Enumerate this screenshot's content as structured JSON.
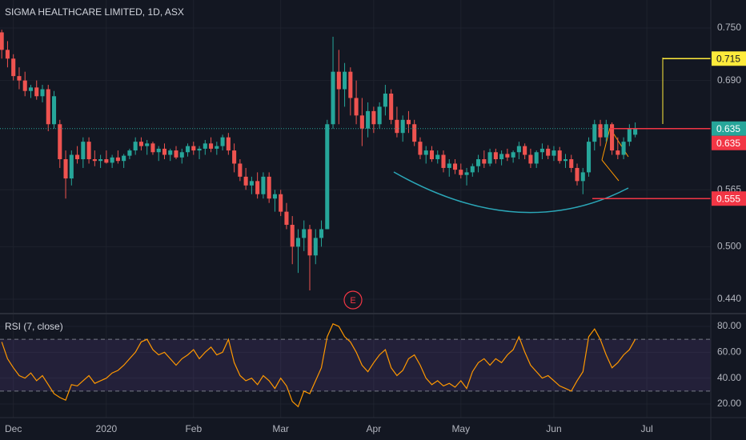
{
  "chart_data": [
    {
      "type": "candlestick",
      "title": "SIGMA HEALTHCARE LIMITED, 1D, ASX",
      "up_color": "#26a69a",
      "down_color": "#ef5350",
      "grid": true,
      "xlim": [
        -0.3,
        122
      ],
      "xticks": [
        {
          "value": 2,
          "label": "Dec"
        },
        {
          "value": 18,
          "label": "2020"
        },
        {
          "value": 33,
          "label": "Feb"
        },
        {
          "value": 48,
          "label": "Mar"
        },
        {
          "value": 64,
          "label": "Apr"
        },
        {
          "value": 79,
          "label": "May"
        },
        {
          "value": 95,
          "label": "Jun"
        },
        {
          "value": 111,
          "label": "Jul"
        }
      ],
      "ylim": [
        0.4235,
        0.782
      ],
      "yticks": [
        {
          "value": 0.75,
          "label": "0.750"
        },
        {
          "value": 0.69,
          "label": "0.690"
        },
        {
          "value": 0.565,
          "label": "0.565"
        },
        {
          "value": 0.5,
          "label": "0.500"
        },
        {
          "value": 0.44,
          "label": "0.440"
        }
      ],
      "price_labels": [
        {
          "value": 0.715,
          "color": "#ffeb3b"
        },
        {
          "value": 0.635,
          "color": "#26a69a"
        },
        {
          "value": 0.635,
          "color": "#f23645"
        },
        {
          "value": 0.555,
          "color": "#f23645"
        }
      ],
      "event_marker": "E",
      "open": [
        0.745,
        0.725,
        0.715,
        0.695,
        0.69,
        0.678,
        0.682,
        0.672,
        0.68,
        0.64,
        0.64,
        0.6,
        0.578,
        0.605,
        0.6,
        0.62,
        0.6,
        0.598,
        0.6,
        0.596,
        0.602,
        0.598,
        0.604,
        0.61,
        0.62,
        0.615,
        0.618,
        0.608,
        0.612,
        0.605,
        0.61,
        0.602,
        0.608,
        0.615,
        0.61,
        0.612,
        0.618,
        0.612,
        0.615,
        0.625,
        0.61,
        0.595,
        0.58,
        0.57,
        0.575,
        0.56,
        0.58,
        0.555,
        0.56,
        0.54,
        0.525,
        0.5,
        0.51,
        0.52,
        0.49,
        0.51,
        0.52,
        0.64,
        0.7,
        0.68,
        0.7,
        0.67,
        0.65,
        0.635,
        0.655,
        0.64,
        0.66,
        0.675,
        0.645,
        0.63,
        0.645,
        0.64,
        0.62,
        0.605,
        0.61,
        0.6,
        0.605,
        0.59,
        0.595,
        0.588,
        0.582,
        0.585,
        0.592,
        0.6,
        0.595,
        0.608,
        0.6,
        0.606,
        0.602,
        0.608,
        0.615,
        0.605,
        0.595,
        0.608,
        0.612,
        0.604,
        0.61,
        0.598,
        0.6,
        0.59,
        0.575,
        0.585,
        0.62,
        0.64,
        0.625,
        0.64,
        0.61,
        0.605,
        0.62,
        0.628
      ],
      "high": [
        0.748,
        0.735,
        0.72,
        0.705,
        0.7,
        0.685,
        0.69,
        0.685,
        0.685,
        0.678,
        0.645,
        0.61,
        0.61,
        0.615,
        0.625,
        0.625,
        0.61,
        0.605,
        0.61,
        0.605,
        0.61,
        0.606,
        0.612,
        0.625,
        0.625,
        0.622,
        0.62,
        0.615,
        0.618,
        0.612,
        0.615,
        0.612,
        0.618,
        0.62,
        0.615,
        0.622,
        0.625,
        0.62,
        0.628,
        0.63,
        0.618,
        0.6,
        0.59,
        0.58,
        0.585,
        0.585,
        0.585,
        0.565,
        0.565,
        0.55,
        0.535,
        0.52,
        0.53,
        0.525,
        0.52,
        0.53,
        0.645,
        0.74,
        0.725,
        0.71,
        0.705,
        0.69,
        0.67,
        0.665,
        0.66,
        0.665,
        0.685,
        0.68,
        0.66,
        0.65,
        0.655,
        0.645,
        0.625,
        0.615,
        0.615,
        0.61,
        0.61,
        0.6,
        0.6,
        0.595,
        0.59,
        0.595,
        0.605,
        0.61,
        0.612,
        0.612,
        0.61,
        0.612,
        0.61,
        0.62,
        0.618,
        0.612,
        0.61,
        0.618,
        0.616,
        0.615,
        0.614,
        0.606,
        0.605,
        0.595,
        0.59,
        0.625,
        0.645,
        0.645,
        0.645,
        0.642,
        0.625,
        0.625,
        0.64,
        0.642
      ],
      "low": [
        0.715,
        0.705,
        0.69,
        0.68,
        0.672,
        0.67,
        0.668,
        0.665,
        0.632,
        0.635,
        0.59,
        0.555,
        0.57,
        0.595,
        0.59,
        0.595,
        0.592,
        0.59,
        0.595,
        0.59,
        0.595,
        0.59,
        0.6,
        0.605,
        0.61,
        0.605,
        0.605,
        0.598,
        0.6,
        0.598,
        0.6,
        0.595,
        0.603,
        0.605,
        0.6,
        0.605,
        0.608,
        0.605,
        0.61,
        0.605,
        0.585,
        0.575,
        0.565,
        0.56,
        0.555,
        0.555,
        0.55,
        0.54,
        0.535,
        0.52,
        0.48,
        0.47,
        0.495,
        0.45,
        0.48,
        0.5,
        0.52,
        0.635,
        0.64,
        0.66,
        0.65,
        0.64,
        0.615,
        0.625,
        0.63,
        0.635,
        0.65,
        0.64,
        0.625,
        0.62,
        0.63,
        0.615,
        0.6,
        0.595,
        0.597,
        0.595,
        0.585,
        0.58,
        0.583,
        0.578,
        0.57,
        0.58,
        0.585,
        0.59,
        0.592,
        0.595,
        0.593,
        0.598,
        0.596,
        0.6,
        0.6,
        0.59,
        0.59,
        0.6,
        0.6,
        0.598,
        0.595,
        0.59,
        0.585,
        0.57,
        0.56,
        0.58,
        0.61,
        0.615,
        0.62,
        0.605,
        0.6,
        0.6,
        0.615,
        0.625
      ],
      "close": [
        0.725,
        0.715,
        0.695,
        0.69,
        0.678,
        0.682,
        0.672,
        0.68,
        0.64,
        0.672,
        0.6,
        0.578,
        0.605,
        0.6,
        0.62,
        0.6,
        0.598,
        0.6,
        0.596,
        0.602,
        0.598,
        0.604,
        0.61,
        0.62,
        0.615,
        0.618,
        0.608,
        0.612,
        0.605,
        0.61,
        0.602,
        0.608,
        0.615,
        0.61,
        0.612,
        0.618,
        0.612,
        0.615,
        0.625,
        0.61,
        0.595,
        0.58,
        0.57,
        0.575,
        0.56,
        0.58,
        0.555,
        0.56,
        0.54,
        0.525,
        0.5,
        0.51,
        0.52,
        0.49,
        0.51,
        0.52,
        0.64,
        0.7,
        0.68,
        0.7,
        0.67,
        0.65,
        0.635,
        0.655,
        0.64,
        0.66,
        0.675,
        0.645,
        0.63,
        0.645,
        0.64,
        0.62,
        0.605,
        0.61,
        0.6,
        0.605,
        0.59,
        0.595,
        0.588,
        0.582,
        0.585,
        0.592,
        0.6,
        0.595,
        0.608,
        0.6,
        0.606,
        0.602,
        0.608,
        0.615,
        0.605,
        0.595,
        0.608,
        0.612,
        0.604,
        0.61,
        0.598,
        0.6,
        0.59,
        0.575,
        0.585,
        0.62,
        0.64,
        0.625,
        0.64,
        0.61,
        0.605,
        0.62,
        0.635,
        0.635
      ]
    },
    {
      "type": "line",
      "title": "RSI (7, close)",
      "color": "#ff9800",
      "ylim": [
        9.5,
        89.9
      ],
      "yticks": [
        {
          "value": 80,
          "label": "80.00"
        },
        {
          "value": 60,
          "label": "60.00"
        },
        {
          "value": 40,
          "label": "40.00"
        },
        {
          "value": 20,
          "label": "20.00"
        }
      ],
      "band": [
        30,
        70
      ],
      "values": [
        68,
        55,
        48,
        42,
        40,
        44,
        38,
        42,
        35,
        28,
        25,
        23,
        35,
        34,
        38,
        42,
        36,
        38,
        40,
        44,
        46,
        50,
        55,
        60,
        68,
        70,
        62,
        58,
        60,
        55,
        50,
        55,
        58,
        62,
        55,
        60,
        64,
        58,
        60,
        70,
        52,
        42,
        38,
        40,
        35,
        42,
        38,
        32,
        40,
        34,
        22,
        18,
        30,
        28,
        38,
        48,
        72,
        82,
        80,
        72,
        68,
        60,
        50,
        45,
        52,
        58,
        62,
        48,
        42,
        46,
        55,
        58,
        50,
        40,
        35,
        38,
        34,
        36,
        33,
        38,
        32,
        45,
        52,
        55,
        50,
        55,
        52,
        58,
        62,
        72,
        60,
        50,
        45,
        40,
        42,
        38,
        34,
        32,
        30,
        38,
        45,
        72,
        78,
        70,
        58,
        48,
        52,
        58,
        62,
        70
      ]
    }
  ]
}
